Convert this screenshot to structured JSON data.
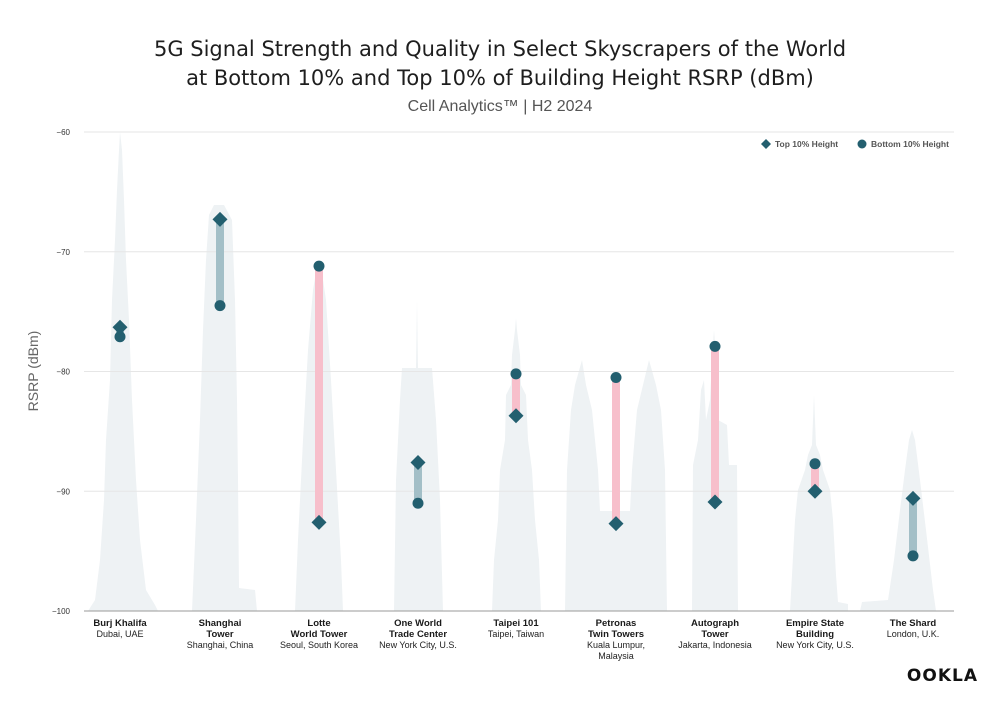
{
  "chart_data": {
    "type": "dumbbell",
    "title_line1": "5G Signal Strength and Quality in Select Skyscrapers of the World",
    "title_line2": "at Bottom 10% and Top 10% of Building Height RSRP (dBm)",
    "subtitle": "Cell Analytics™ | H2 2024",
    "ylabel": "RSRP (dBm)",
    "ylim": [
      -100,
      -60
    ],
    "yticks": [
      "−60",
      "−70",
      "−80",
      "−90",
      "−100"
    ],
    "ytick_values": [
      -60,
      -70,
      -80,
      -90,
      -100
    ],
    "grid": true,
    "legend_position": "top-right",
    "series": [
      {
        "name": "Top 10% Height",
        "marker": "diamond",
        "values": [
          -76.3,
          -67.3,
          -92.6,
          -87.6,
          -83.7,
          -92.7,
          -90.9,
          -90.0,
          -90.6
        ]
      },
      {
        "name": "Bottom 10% Height",
        "marker": "circle",
        "values": [
          -77.1,
          -74.5,
          -71.2,
          -91.0,
          -80.2,
          -80.5,
          -77.9,
          -87.7,
          -95.4
        ]
      }
    ],
    "categories": [
      {
        "name": [
          "Burj Khalifa"
        ],
        "location": [
          "Dubai, UAE"
        ]
      },
      {
        "name": [
          "Shanghai",
          "Tower"
        ],
        "location": [
          "Shanghai, China"
        ]
      },
      {
        "name": [
          "Lotte",
          "World Tower"
        ],
        "location": [
          "Seoul, South Korea"
        ]
      },
      {
        "name": [
          "One World",
          "Trade Center"
        ],
        "location": [
          "New York City, U.S."
        ]
      },
      {
        "name": [
          "Taipei 101"
        ],
        "location": [
          "Taipei, Taiwan"
        ]
      },
      {
        "name": [
          "Petronas",
          "Twin Towers"
        ],
        "location": [
          "Kuala Lumpur,",
          "Malaysia"
        ]
      },
      {
        "name": [
          "Autograph",
          "Tower"
        ],
        "location": [
          "Jakarta, Indonesia"
        ]
      },
      {
        "name": [
          "Empire State",
          "Building"
        ],
        "location": [
          "New York City, U.S."
        ]
      },
      {
        "name": [
          "The Shard"
        ],
        "location": [
          "London, U.K."
        ]
      }
    ],
    "colors": {
      "marker": "#235f6f",
      "connector_top_higher": "#a3bfc7",
      "connector_bottom_higher": "#f7bfcb",
      "silhouette": "#eef2f4"
    }
  },
  "logo": "OOKLA"
}
